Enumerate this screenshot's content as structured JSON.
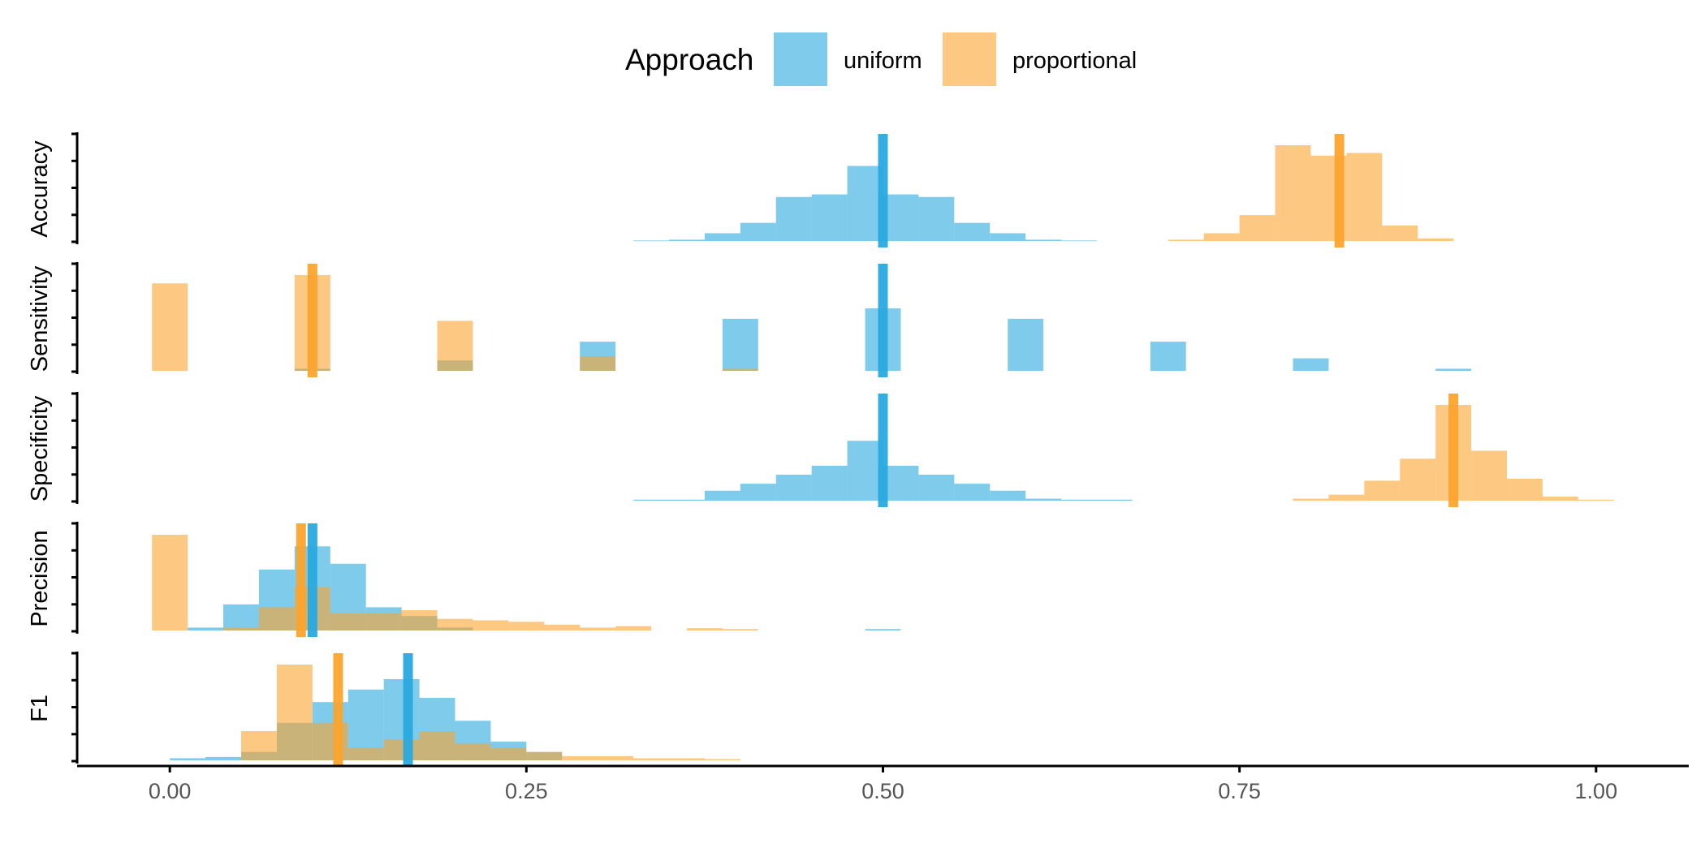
{
  "legend": {
    "title": "Approach",
    "position": "top",
    "entries": [
      {
        "key": "uniform",
        "label": "uniform",
        "color": "#29A9E0"
      },
      {
        "key": "proportional",
        "label": "proportional",
        "color": "#FBA42D"
      }
    ]
  },
  "chart_data": {
    "type": "histogram",
    "xlim": [
      -0.065,
      1.065
    ],
    "x_ticks": [
      {
        "value": 0.0,
        "label": "0.00"
      },
      {
        "value": 0.25,
        "label": "0.25"
      },
      {
        "value": 0.5,
        "label": "0.50"
      },
      {
        "value": 0.75,
        "label": "0.75"
      },
      {
        "value": 1.0,
        "label": "1.00"
      }
    ],
    "grid": false,
    "bin_width": 0.025,
    "series_colors": {
      "uniform": "#29A9E0",
      "proportional": "#FBA42D"
    },
    "facets": [
      {
        "name": "Accuracy",
        "ymax": 1.0,
        "series": {
          "uniform": {
            "mean": 0.5,
            "bins": [
              [
                0.3375,
                0.2
              ],
              [
                0.3625,
                0.5
              ],
              [
                0.3875,
                3
              ],
              [
                0.4125,
                7
              ],
              [
                0.4375,
                17
              ],
              [
                0.4625,
                18
              ],
              [
                0.4875,
                29
              ],
              [
                0.5125,
                18
              ],
              [
                0.5375,
                17
              ],
              [
                0.5625,
                7
              ],
              [
                0.5875,
                3
              ],
              [
                0.6125,
                0.5
              ],
              [
                0.6375,
                0.2
              ]
            ]
          },
          "proportional": {
            "mean": 0.82,
            "bins": [
              [
                0.7125,
                0.5
              ],
              [
                0.7375,
                3
              ],
              [
                0.7625,
                10
              ],
              [
                0.7875,
                37
              ],
              [
                0.8125,
                33
              ],
              [
                0.8375,
                34
              ],
              [
                0.8625,
                6
              ],
              [
                0.8875,
                1
              ]
            ]
          }
        }
      },
      {
        "name": "Sensitivity",
        "ymax": 1.0,
        "series": {
          "uniform": {
            "mean": 0.5,
            "bins": [
              [
                0.1,
                1
              ],
              [
                0.2,
                5
              ],
              [
                0.3,
                14
              ],
              [
                0.4,
                25
              ],
              [
                0.5,
                30
              ],
              [
                0.6,
                25
              ],
              [
                0.7,
                14
              ],
              [
                0.8,
                6
              ],
              [
                0.9,
                1
              ]
            ]
          },
          "proportional": {
            "mean": 0.1,
            "bins": [
              [
                0.0,
                42
              ],
              [
                0.1,
                46
              ],
              [
                0.2,
                24
              ],
              [
                0.3,
                7
              ],
              [
                0.4,
                1
              ]
            ]
          }
        }
      },
      {
        "name": "Specificity",
        "ymax": 1.0,
        "series": {
          "uniform": {
            "mean": 0.5,
            "bins": [
              [
                0.3375,
                0.5
              ],
              [
                0.3625,
                0.5
              ],
              [
                0.3875,
                5
              ],
              [
                0.4125,
                8.5
              ],
              [
                0.4375,
                13
              ],
              [
                0.4625,
                17.5
              ],
              [
                0.4875,
                30
              ],
              [
                0.5125,
                17.5
              ],
              [
                0.5375,
                13
              ],
              [
                0.5625,
                8.5
              ],
              [
                0.5875,
                5
              ],
              [
                0.6125,
                1
              ],
              [
                0.6375,
                0.5
              ],
              [
                0.6625,
                0.5
              ]
            ]
          },
          "proportional": {
            "mean": 0.9,
            "bins": [
              [
                0.8,
                1
              ],
              [
                0.825,
                3
              ],
              [
                0.85,
                10
              ],
              [
                0.875,
                21
              ],
              [
                0.9,
                48
              ],
              [
                0.925,
                25
              ],
              [
                0.95,
                11
              ],
              [
                0.975,
                2
              ],
              [
                1.0,
                0.5
              ]
            ]
          }
        }
      },
      {
        "name": "Precision",
        "ymax": 1.0,
        "series": {
          "uniform": {
            "mean": 0.1,
            "bins": [
              [
                0.025,
                1
              ],
              [
                0.05,
                9
              ],
              [
                0.075,
                21
              ],
              [
                0.1,
                29
              ],
              [
                0.125,
                23
              ],
              [
                0.15,
                8
              ],
              [
                0.175,
                5
              ],
              [
                0.2,
                1
              ],
              [
                0.5,
                0.5
              ]
            ]
          },
          "proportional": {
            "mean": 0.092,
            "bins": [
              [
                0.0,
                33
              ],
              [
                0.05,
                1
              ],
              [
                0.075,
                8
              ],
              [
                0.1,
                15
              ],
              [
                0.125,
                6
              ],
              [
                0.15,
                6
              ],
              [
                0.175,
                7
              ],
              [
                0.2,
                4
              ],
              [
                0.225,
                3.5
              ],
              [
                0.25,
                3
              ],
              [
                0.275,
                2
              ],
              [
                0.3,
                1
              ],
              [
                0.325,
                1.5
              ],
              [
                0.375,
                0.8
              ],
              [
                0.4,
                0.5
              ]
            ]
          }
        }
      },
      {
        "name": "F1",
        "ymax": 1.0,
        "series": {
          "uniform": {
            "mean": 0.167,
            "bins": [
              [
                0.0125,
                0.5
              ],
              [
                0.0375,
                0.8
              ],
              [
                0.0625,
                2
              ],
              [
                0.0875,
                9
              ],
              [
                0.1125,
                14
              ],
              [
                0.1375,
                17
              ],
              [
                0.1625,
                19.5
              ],
              [
                0.1875,
                15
              ],
              [
                0.2125,
                9.5
              ],
              [
                0.2375,
                4.5
              ],
              [
                0.2625,
                2
              ]
            ]
          },
          "proportional": {
            "mean": 0.118,
            "bins": [
              [
                0.0625,
                7
              ],
              [
                0.0875,
                23
              ],
              [
                0.1125,
                9
              ],
              [
                0.1375,
                3
              ],
              [
                0.1625,
                5
              ],
              [
                0.1875,
                7
              ],
              [
                0.2125,
                4
              ],
              [
                0.2375,
                3
              ],
              [
                0.2625,
                2
              ],
              [
                0.2875,
                1
              ],
              [
                0.3125,
                1
              ],
              [
                0.3375,
                0.5
              ],
              [
                0.3625,
                0.5
              ],
              [
                0.3875,
                0.3
              ]
            ]
          }
        }
      }
    ]
  }
}
